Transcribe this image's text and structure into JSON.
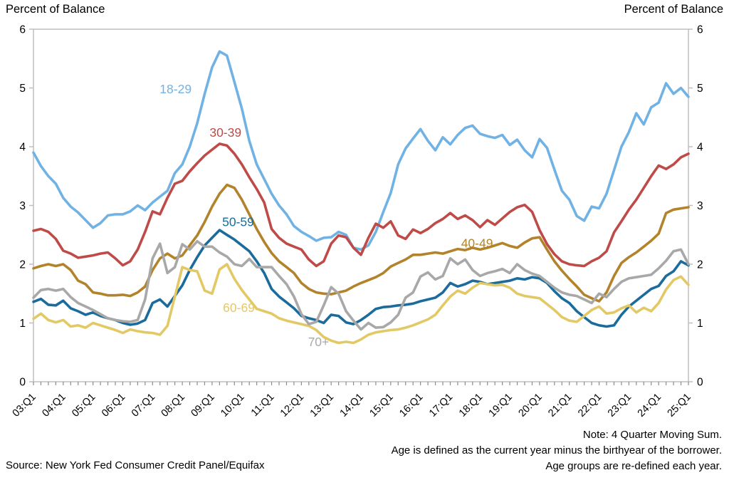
{
  "header": {
    "left_axis_title": "Percent of Balance",
    "right_axis_title": "Percent of Balance"
  },
  "footer": {
    "source": "Source: New York Fed Consumer Credit Panel/Equifax",
    "notes": [
      "Note: 4 Quarter Moving Sum.",
      "Age is defined as the current year minus the birthyear of the borrower.",
      "Age groups are re-defined each year."
    ]
  },
  "colors": {
    "frame": "#BFBFBF",
    "tick": "#8C8C8C",
    "text": "#000000"
  },
  "chart_data": {
    "type": "line",
    "title": "",
    "ylabel": "Percent of Balance",
    "ylabel_right": "Percent of Balance",
    "ylim": [
      0,
      6
    ],
    "yticks": [
      0,
      1,
      2,
      3,
      4,
      5,
      6
    ],
    "grid": false,
    "legend_position": "inline-labels",
    "x_frequency": "quarterly",
    "x_start": "2003:Q1",
    "x_end": "2025:Q1",
    "xtick_labels": [
      "03:Q1",
      "04:Q1",
      "05:Q1",
      "06:Q1",
      "07:Q1",
      "08:Q1",
      "09:Q1",
      "10:Q1",
      "11:Q1",
      "12:Q1",
      "13:Q1",
      "14:Q1",
      "15:Q1",
      "16:Q1",
      "17:Q1",
      "18:Q1",
      "19:Q1",
      "20:Q1",
      "21:Q1",
      "22:Q1",
      "23:Q1",
      "24:Q1",
      "25:Q1"
    ],
    "xticks_every_n_quarters": 4,
    "series": [
      {
        "name": "18-29",
        "color": "#71B2E5",
        "label": {
          "text": "18-29",
          "x_index": 19.1,
          "y_value": 4.98
        },
        "values": [
          3.9,
          3.67,
          3.5,
          3.37,
          3.13,
          2.98,
          2.88,
          2.75,
          2.62,
          2.7,
          2.83,
          2.85,
          2.85,
          2.9,
          3.0,
          2.92,
          3.05,
          3.15,
          3.25,
          3.55,
          3.7,
          4.0,
          4.4,
          4.9,
          5.35,
          5.62,
          5.55,
          5.1,
          4.65,
          4.1,
          3.7,
          3.45,
          3.2,
          3.0,
          2.85,
          2.65,
          2.55,
          2.48,
          2.4,
          2.45,
          2.46,
          2.55,
          2.5,
          2.28,
          2.25,
          2.32,
          2.55,
          2.89,
          3.21,
          3.7,
          3.97,
          4.14,
          4.3,
          4.1,
          3.94,
          4.16,
          4.04,
          4.2,
          4.32,
          4.36,
          4.22,
          4.18,
          4.15,
          4.2,
          4.03,
          4.12,
          3.94,
          3.82,
          4.13,
          3.98,
          3.61,
          3.25,
          3.1,
          2.82,
          2.74,
          2.98,
          2.95,
          3.2,
          3.6,
          4.0,
          4.25,
          4.57,
          4.38,
          4.67,
          4.75,
          5.08,
          4.9,
          5.0,
          4.85
        ]
      },
      {
        "name": "30-39",
        "color": "#BE4B48",
        "label": {
          "text": "30-39",
          "x_index": 25.8,
          "y_value": 4.24
        },
        "values": [
          2.57,
          2.6,
          2.55,
          2.43,
          2.23,
          2.18,
          2.11,
          2.13,
          2.15,
          2.18,
          2.2,
          2.1,
          1.98,
          2.05,
          2.25,
          2.55,
          2.9,
          2.85,
          3.13,
          3.37,
          3.42,
          3.58,
          3.72,
          3.85,
          3.95,
          4.05,
          4.02,
          3.88,
          3.7,
          3.48,
          3.28,
          3.05,
          2.6,
          2.45,
          2.35,
          2.3,
          2.25,
          2.08,
          1.97,
          2.05,
          2.35,
          2.49,
          2.46,
          2.28,
          2.16,
          2.45,
          2.69,
          2.62,
          2.73,
          2.49,
          2.43,
          2.59,
          2.53,
          2.6,
          2.7,
          2.77,
          2.87,
          2.77,
          2.83,
          2.75,
          2.63,
          2.75,
          2.67,
          2.78,
          2.89,
          2.97,
          3.01,
          2.89,
          2.58,
          2.34,
          2.17,
          2.05,
          2.0,
          1.98,
          1.97,
          2.05,
          2.11,
          2.22,
          2.54,
          2.73,
          2.93,
          3.1,
          3.3,
          3.5,
          3.68,
          3.62,
          3.7,
          3.82,
          3.88
        ]
      },
      {
        "name": "40-49",
        "color": "#B2832A",
        "label": {
          "text": "40-49",
          "x_index": 59.6,
          "y_value": 2.36
        },
        "values": [
          1.93,
          1.97,
          2.0,
          1.97,
          2.0,
          1.9,
          1.72,
          1.66,
          1.52,
          1.5,
          1.47,
          1.47,
          1.48,
          1.46,
          1.52,
          1.62,
          1.9,
          2.1,
          2.18,
          2.1,
          2.15,
          2.32,
          2.49,
          2.72,
          2.98,
          3.2,
          3.35,
          3.3,
          3.1,
          2.85,
          2.6,
          2.38,
          2.19,
          2.05,
          1.95,
          1.85,
          1.68,
          1.58,
          1.52,
          1.5,
          1.49,
          1.52,
          1.55,
          1.62,
          1.68,
          1.73,
          1.78,
          1.85,
          1.96,
          2.02,
          2.08,
          2.16,
          2.16,
          2.18,
          2.2,
          2.18,
          2.22,
          2.26,
          2.24,
          2.28,
          2.25,
          2.28,
          2.32,
          2.36,
          2.31,
          2.28,
          2.37,
          2.44,
          2.46,
          2.25,
          2.05,
          1.89,
          1.75,
          1.62,
          1.48,
          1.42,
          1.37,
          1.52,
          1.8,
          2.02,
          2.12,
          2.2,
          2.3,
          2.4,
          2.52,
          2.87,
          2.93,
          2.95,
          2.97
        ]
      },
      {
        "name": "50-59",
        "color": "#1B6C9C",
        "label": {
          "text": "50-59",
          "x_index": 27.5,
          "y_value": 2.72
        },
        "values": [
          1.36,
          1.41,
          1.31,
          1.3,
          1.38,
          1.25,
          1.2,
          1.14,
          1.18,
          1.12,
          1.08,
          1.05,
          1.0,
          0.97,
          0.99,
          1.05,
          1.34,
          1.4,
          1.28,
          1.46,
          1.64,
          1.9,
          2.12,
          2.32,
          2.45,
          2.58,
          2.5,
          2.42,
          2.32,
          2.22,
          2.05,
          1.85,
          1.58,
          1.45,
          1.35,
          1.25,
          1.12,
          1.08,
          1.05,
          1.0,
          1.14,
          1.12,
          1.01,
          0.98,
          1.05,
          1.14,
          1.24,
          1.27,
          1.28,
          1.3,
          1.31,
          1.33,
          1.37,
          1.4,
          1.43,
          1.52,
          1.68,
          1.62,
          1.66,
          1.72,
          1.7,
          1.66,
          1.68,
          1.7,
          1.72,
          1.76,
          1.74,
          1.78,
          1.76,
          1.68,
          1.54,
          1.42,
          1.34,
          1.2,
          1.1,
          1.0,
          0.96,
          0.94,
          0.96,
          1.14,
          1.28,
          1.38,
          1.48,
          1.58,
          1.63,
          1.8,
          1.88,
          2.05,
          1.98
        ]
      },
      {
        "name": "60-69",
        "color": "#E2C965",
        "label": {
          "text": "60-69",
          "x_index": 27.6,
          "y_value": 1.26
        },
        "values": [
          1.07,
          1.16,
          1.05,
          1.01,
          1.05,
          0.94,
          0.96,
          0.92,
          1.0,
          0.96,
          0.92,
          0.88,
          0.83,
          0.89,
          0.86,
          0.84,
          0.83,
          0.8,
          0.95,
          1.45,
          1.95,
          1.9,
          1.88,
          1.55,
          1.5,
          1.91,
          2.0,
          1.75,
          1.56,
          1.4,
          1.24,
          1.2,
          1.16,
          1.08,
          1.04,
          1.01,
          0.98,
          0.95,
          0.88,
          0.76,
          0.7,
          0.66,
          0.68,
          0.66,
          0.72,
          0.8,
          0.84,
          0.86,
          0.88,
          0.89,
          0.92,
          0.96,
          1.01,
          1.06,
          1.14,
          1.3,
          1.45,
          1.55,
          1.5,
          1.6,
          1.68,
          1.66,
          1.64,
          1.65,
          1.6,
          1.5,
          1.46,
          1.44,
          1.42,
          1.32,
          1.22,
          1.1,
          1.04,
          1.02,
          1.12,
          1.22,
          1.28,
          1.16,
          1.18,
          1.25,
          1.3,
          1.18,
          1.26,
          1.2,
          1.34,
          1.57,
          1.73,
          1.79,
          1.65
        ]
      },
      {
        "name": "70+",
        "color": "#A8A8A8",
        "label": {
          "text": "70+",
          "x_index": 38.3,
          "y_value": 0.68
        },
        "values": [
          1.43,
          1.56,
          1.58,
          1.55,
          1.58,
          1.44,
          1.34,
          1.28,
          1.22,
          1.15,
          1.08,
          1.05,
          1.03,
          1.02,
          1.05,
          1.4,
          2.1,
          2.35,
          1.85,
          1.95,
          2.34,
          2.25,
          2.39,
          2.3,
          2.3,
          2.2,
          2.13,
          2.0,
          1.97,
          2.09,
          1.95,
          1.95,
          1.95,
          1.8,
          1.66,
          1.45,
          1.15,
          0.98,
          1.02,
          1.3,
          1.61,
          1.5,
          1.2,
          1.04,
          0.89,
          1.0,
          0.92,
          0.93,
          1.01,
          1.14,
          1.43,
          1.52,
          1.79,
          1.86,
          1.74,
          1.8,
          2.1,
          2.0,
          2.08,
          1.9,
          1.8,
          1.85,
          1.88,
          1.92,
          1.85,
          2.0,
          1.9,
          1.84,
          1.8,
          1.7,
          1.6,
          1.52,
          1.48,
          1.46,
          1.4,
          1.34,
          1.5,
          1.44,
          1.58,
          1.7,
          1.76,
          1.78,
          1.8,
          1.82,
          1.93,
          2.06,
          2.22,
          2.25,
          2.0
        ]
      }
    ]
  }
}
